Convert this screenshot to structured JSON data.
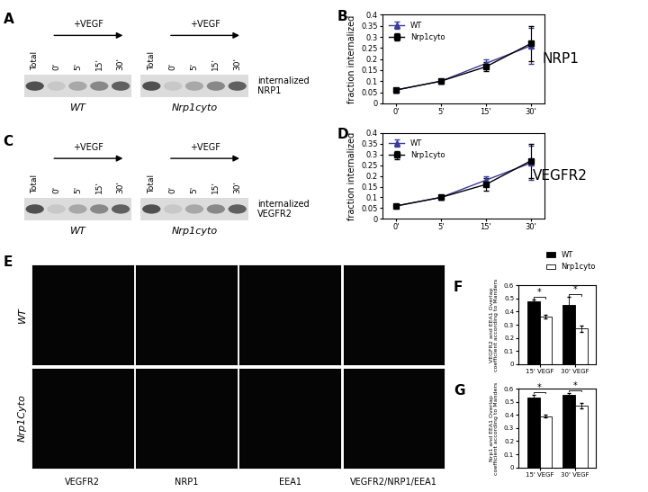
{
  "blots": [
    {
      "panel": "A",
      "lanes": [
        "Total",
        "0'",
        "5'",
        "15'",
        "30'"
      ],
      "treatment": "+VEGF",
      "groups": [
        "WT",
        "Nrp1cyto"
      ],
      "label": "internalized\nNRP1"
    },
    {
      "panel": "C",
      "lanes": [
        "Total",
        "0'",
        "5'",
        "15'",
        "30'"
      ],
      "treatment": "+VEGF",
      "groups": [
        "WT",
        "Nrp1cyto"
      ],
      "label": "internalized\nVEGFR2"
    }
  ],
  "micrographs": {
    "panel": "E",
    "rows": [
      "WT",
      "Nrp1Cyto"
    ],
    "columns": [
      "VEGFR2",
      "NRP1",
      "EEA1",
      "VEGFR2/NRP1/EEA1"
    ]
  },
  "chart_data": [
    {
      "panel": "B",
      "type": "line",
      "title": "NRP1",
      "y_label": "fraction internalized",
      "categories": [
        "0'",
        "5'",
        "15'",
        "30'"
      ],
      "ylim": [
        0,
        0.4
      ],
      "yticks": [
        0,
        0.05,
        0.1,
        0.15,
        0.2,
        0.25,
        0.3,
        0.35,
        0.4
      ],
      "legend": "upper left",
      "series": [
        {
          "name": "WT",
          "color": "#3b3b9a",
          "marker": "triangle",
          "values": [
            0.06,
            0.1,
            0.18,
            0.26
          ],
          "errors": [
            0.01,
            0.01,
            0.02,
            0.08
          ]
        },
        {
          "name": "Nrp1cyto",
          "color": "#000000",
          "marker": "square",
          "values": [
            0.06,
            0.1,
            0.165,
            0.27
          ],
          "errors": [
            0.01,
            0.01,
            0.02,
            0.08
          ]
        }
      ]
    },
    {
      "panel": "D",
      "type": "line",
      "title": "VEGFR2",
      "y_label": "fraction internalized",
      "categories": [
        "0'",
        "5'",
        "15'",
        "30'"
      ],
      "ylim": [
        0,
        0.4
      ],
      "yticks": [
        0,
        0.05,
        0.1,
        0.15,
        0.2,
        0.25,
        0.3,
        0.35,
        0.4
      ],
      "legend": "upper left",
      "series": [
        {
          "name": "WT",
          "color": "#3b3b9a",
          "marker": "triangle",
          "values": [
            0.06,
            0.1,
            0.18,
            0.26
          ],
          "errors": [
            0.01,
            0.01,
            0.02,
            0.08
          ]
        },
        {
          "name": "Nrp1cyto",
          "color": "#000000",
          "marker": "square",
          "values": [
            0.06,
            0.1,
            0.16,
            0.27
          ],
          "errors": [
            0.01,
            0.01,
            0.03,
            0.08
          ]
        }
      ]
    },
    {
      "panel": "F",
      "type": "bar",
      "y_label": "VEGFR2 and EEA1 Overlap\ncoefficient according to Manders",
      "categories": [
        "15' VEGF",
        "30' VEGF"
      ],
      "ylim": [
        0,
        0.6
      ],
      "yticks": [
        0,
        0.1,
        0.2,
        0.3,
        0.4,
        0.5,
        0.6
      ],
      "legend": "upper right",
      "series": [
        {
          "name": "WT",
          "color": "#000000",
          "values": [
            0.48,
            0.45
          ],
          "errors": [
            0.01,
            0.06
          ]
        },
        {
          "name": "Nrp1cyto",
          "color": "#ffffff",
          "values": [
            0.36,
            0.27
          ],
          "errors": [
            0.015,
            0.025
          ]
        }
      ],
      "annotations": [
        "*",
        "*"
      ]
    },
    {
      "panel": "G",
      "type": "bar",
      "y_label": "Nrp1 and EEA1 Overlap\ncoefficient according to Manders",
      "categories": [
        "15' VEGF",
        "30' VEGF"
      ],
      "ylim": [
        0,
        0.6
      ],
      "yticks": [
        0,
        0.1,
        0.2,
        0.3,
        0.4,
        0.5,
        0.6
      ],
      "series": [
        {
          "name": "WT",
          "color": "#000000",
          "values": [
            0.535,
            0.55
          ],
          "errors": [
            0.02,
            0.02
          ]
        },
        {
          "name": "Nrp1cyto",
          "color": "#ffffff",
          "values": [
            0.39,
            0.47
          ],
          "errors": [
            0.01,
            0.02
          ]
        }
      ],
      "annotations": [
        "*",
        "*"
      ]
    }
  ]
}
